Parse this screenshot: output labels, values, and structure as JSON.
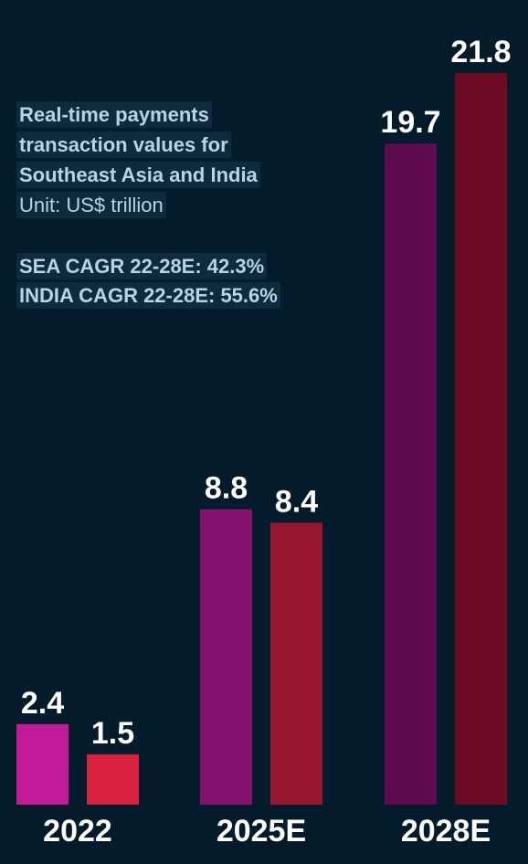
{
  "title_lines": [
    "Real-time payments",
    "transaction values for",
    "Southeast Asia and India"
  ],
  "unit": "Unit: US$ trillion",
  "cagr": {
    "sea": "SEA CAGR 22-28E: 42.3%",
    "india": "INDIA CAGR 22-28E: 55.6%"
  },
  "chart_data": {
    "type": "bar",
    "categories": [
      "2022",
      "2025E",
      "2028E"
    ],
    "series": [
      {
        "name": "",
        "values": [
          2.4,
          8.8,
          19.7
        ],
        "colors": [
          "#c11b9a",
          "#861270",
          "#5e0b4f"
        ]
      },
      {
        "name": "",
        "values": [
          1.5,
          8.4,
          21.8
        ],
        "colors": [
          "#d9203f",
          "#991631",
          "#6b0a22"
        ]
      }
    ],
    "value_labels": [
      [
        "2.4",
        "8.8",
        "19.7"
      ],
      [
        "1.5",
        "8.4",
        "21.8"
      ]
    ],
    "ylim": [
      0,
      21.8
    ],
    "grid": false,
    "legend": "none"
  }
}
